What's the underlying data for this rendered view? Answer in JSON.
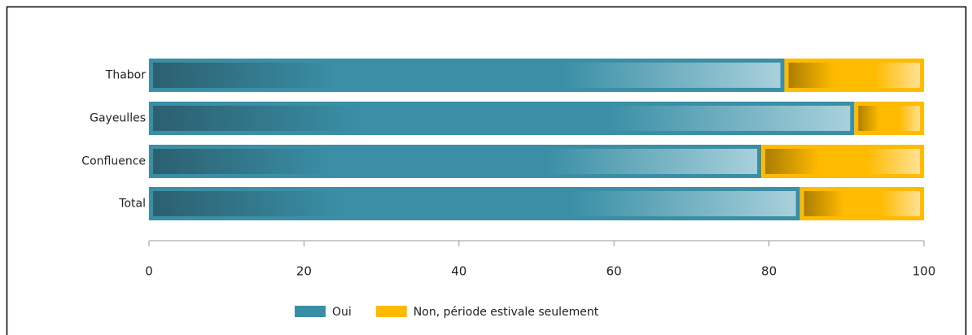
{
  "chart_data": {
    "type": "stacked-barh",
    "categories": [
      "Thabor",
      "Gayeulles",
      "Confluence",
      "Total"
    ],
    "series": [
      {
        "name": "Oui",
        "color": "#3a8fa6",
        "values": [
          82,
          91,
          79,
          84
        ]
      },
      {
        "name": "Non, période estivale seulement",
        "color": "#ffbb00",
        "values": [
          18,
          9,
          21,
          16
        ]
      }
    ],
    "xlim": [
      0,
      100
    ],
    "xticks": [
      0,
      20,
      40,
      60,
      80,
      100
    ]
  }
}
